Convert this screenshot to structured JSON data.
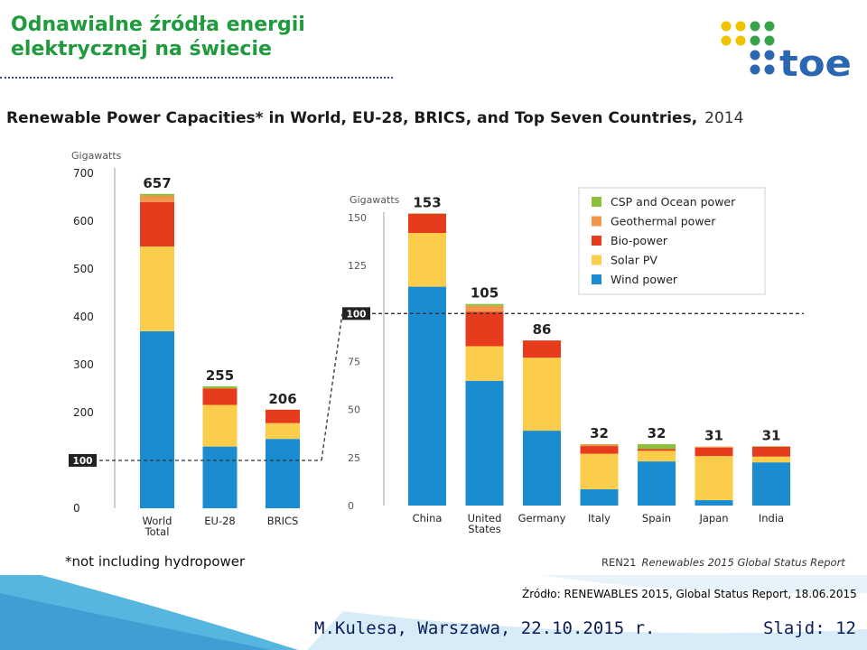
{
  "slide": {
    "title_line1": "Odnawialne źródła energii",
    "title_line2": "elektrycznej na świecie",
    "logo_text": "toe",
    "source": "Źródło: RENEWABLES 2015, Global Status Report, 18.06.2015",
    "author": "M.Kulesa, Warszawa, 22.10.2015 r.",
    "slide_label": "Slajd: 12"
  },
  "colors": {
    "title_green": "#1f9a3d",
    "wind": "#1a8ccf",
    "solar": "#fbcd4b",
    "bio": "#e63b1c",
    "geothermal": "#f0954a",
    "csp": "#8cbf3a",
    "logo_blue": "#2b66b1",
    "logo_yellow": "#f2c200",
    "logo_green": "#3aa24a"
  },
  "chart_data": {
    "type": "bar",
    "stacked": true,
    "title": "Renewable Power Capacities* in World, EU-28, BRICS, and Top Seven Countries,",
    "title_year": "2014",
    "footnote": "*not including hydropower",
    "credit_org": "REN21",
    "credit_report": "Renewables 2015 Global Status Report",
    "legend_position": "top-right",
    "series_order": [
      "CSP and Ocean power",
      "Geothermal power",
      "Bio-power",
      "Solar PV",
      "Wind power"
    ],
    "left": {
      "ylabel": "Gigawatts",
      "ylim": [
        0,
        700
      ],
      "ticks": [
        "0",
        "100",
        "200",
        "300",
        "400",
        "500",
        "600",
        "700"
      ],
      "marker_label": "100",
      "categories": [
        "World Total",
        "EU-28",
        "BRICS"
      ],
      "totals": [
        "657",
        "255",
        "206"
      ],
      "series": [
        {
          "name": "Wind power",
          "color": "#1a8ccf",
          "values": [
            370,
            129,
            145
          ]
        },
        {
          "name": "Solar PV",
          "color": "#fbcd4b",
          "values": [
            177,
            87,
            33
          ]
        },
        {
          "name": "Bio-power",
          "color": "#e63b1c",
          "values": [
            93,
            34,
            28
          ]
        },
        {
          "name": "Geothermal power",
          "color": "#f0954a",
          "values": [
            13,
            1,
            0
          ]
        },
        {
          "name": "CSP and Ocean power",
          "color": "#8cbf3a",
          "values": [
            4,
            4,
            0
          ]
        }
      ]
    },
    "right": {
      "ylabel": "Gigawatts",
      "ylim": [
        0,
        150
      ],
      "ticks": [
        "0",
        "25",
        "50",
        "75",
        "100",
        "125",
        "150"
      ],
      "marker_label": "100",
      "categories": [
        "China",
        "United States",
        "Germany",
        "Italy",
        "Spain",
        "Japan",
        "India"
      ],
      "totals": [
        "153",
        "105",
        "86",
        "32",
        "32",
        "31",
        "31"
      ],
      "series": [
        {
          "name": "Wind power",
          "color": "#1a8ccf",
          "values": [
            114,
            65,
            39,
            8.5,
            23,
            2.8,
            22.5
          ]
        },
        {
          "name": "Solar PV",
          "color": "#fbcd4b",
          "values": [
            28,
            18,
            38,
            18.5,
            5.5,
            23,
            3
          ]
        },
        {
          "name": "Bio-power",
          "color": "#e63b1c",
          "values": [
            10,
            18,
            9,
            4,
            1,
            4.4,
            5.2
          ]
        },
        {
          "name": "Geothermal power",
          "color": "#f0954a",
          "values": [
            0,
            3,
            0,
            0.9,
            0,
            0.5,
            0
          ]
        },
        {
          "name": "CSP and Ocean power",
          "color": "#8cbf3a",
          "values": [
            0.2,
            1,
            0,
            0.1,
            2.5,
            0,
            0.2
          ]
        }
      ]
    }
  }
}
